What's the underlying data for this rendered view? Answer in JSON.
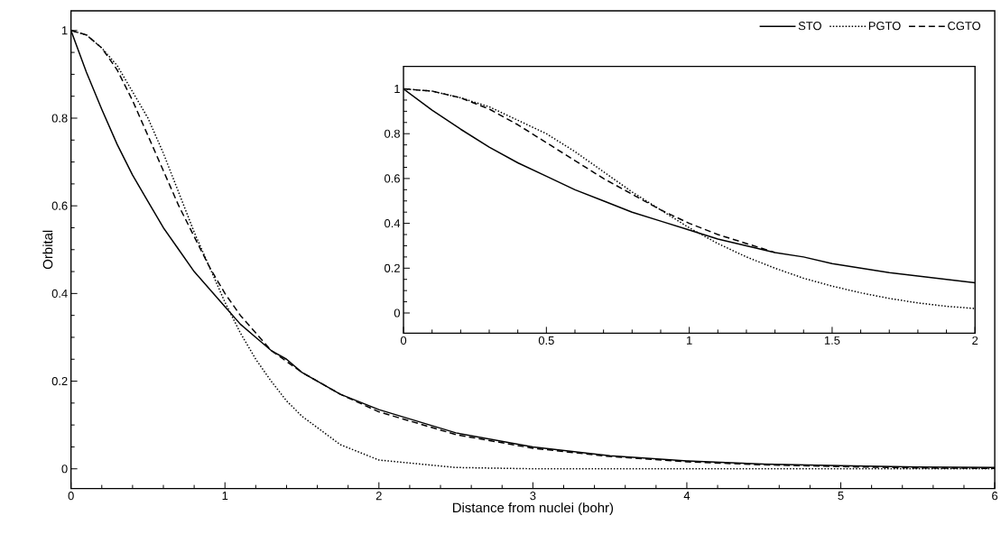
{
  "chart_data": [
    {
      "type": "line",
      "xlabel": "Distance from nuclei (bohr)",
      "ylabel": "Orbital",
      "xlim": [
        0,
        6
      ],
      "ylim": [
        -0.045,
        1.045
      ],
      "xticks": [
        0,
        1,
        2,
        3,
        4,
        5,
        6
      ],
      "yticks": [
        0,
        0.2,
        0.4,
        0.6,
        0.8,
        1
      ],
      "legend": "top right",
      "series": [
        {
          "name": "STO",
          "color": "#000000",
          "line_style": "solid",
          "x": [
            0,
            0.1,
            0.2,
            0.3,
            0.4,
            0.5,
            0.6,
            0.7,
            0.8,
            0.9,
            1,
            1.1,
            1.2,
            1.3,
            1.4,
            1.5,
            1.75,
            2,
            2.5,
            3,
            3.5,
            4,
            4.5,
            5,
            5.5,
            6
          ],
          "values": [
            1,
            0.905,
            0.82,
            0.74,
            0.67,
            0.61,
            0.55,
            0.5,
            0.45,
            0.41,
            0.37,
            0.33,
            0.3,
            0.27,
            0.25,
            0.22,
            0.17,
            0.135,
            0.082,
            0.05,
            0.03,
            0.018,
            0.011,
            0.007,
            0.004,
            0.003
          ]
        },
        {
          "name": "PGTO",
          "color": "#000000",
          "line_style": "dotted",
          "x": [
            0,
            0.1,
            0.2,
            0.3,
            0.4,
            0.5,
            0.6,
            0.7,
            0.8,
            0.9,
            1,
            1.1,
            1.2,
            1.3,
            1.4,
            1.5,
            1.75,
            2,
            2.5,
            3,
            3.5,
            4,
            4.5,
            5,
            5.5,
            6
          ],
          "values": [
            1,
            0.99,
            0.96,
            0.92,
            0.86,
            0.8,
            0.72,
            0.63,
            0.54,
            0.46,
            0.38,
            0.31,
            0.25,
            0.2,
            0.155,
            0.12,
            0.055,
            0.02,
            0.003,
            0,
            0,
            0,
            0,
            0,
            0,
            0
          ]
        },
        {
          "name": "CGTO",
          "color": "#000000",
          "line_style": "dashed",
          "x": [
            0,
            0.1,
            0.2,
            0.3,
            0.4,
            0.5,
            0.6,
            0.7,
            0.8,
            0.9,
            1,
            1.1,
            1.2,
            1.3,
            1.4,
            1.5,
            1.75,
            2,
            2.5,
            3,
            3.5,
            4,
            4.5,
            5,
            5.5,
            6
          ],
          "values": [
            1,
            0.99,
            0.96,
            0.91,
            0.84,
            0.76,
            0.68,
            0.6,
            0.53,
            0.46,
            0.4,
            0.35,
            0.31,
            0.27,
            0.245,
            0.22,
            0.17,
            0.13,
            0.078,
            0.047,
            0.028,
            0.016,
            0.009,
            0.005,
            0.002,
            0.001
          ]
        }
      ]
    },
    {
      "type": "line",
      "xlim": [
        0,
        2
      ],
      "ylim": [
        -0.09,
        1.1
      ],
      "xticks": [
        0,
        0.5,
        1,
        1.5,
        2
      ],
      "yticks": [
        0,
        0.2,
        0.4,
        0.6,
        0.8,
        1
      ],
      "series": [
        {
          "color": "#000000",
          "line_style": "solid",
          "x": [
            0,
            0.1,
            0.2,
            0.3,
            0.4,
            0.5,
            0.6,
            0.7,
            0.8,
            0.9,
            1,
            1.1,
            1.2,
            1.3,
            1.4,
            1.5,
            1.6,
            1.7,
            1.8,
            1.9,
            2
          ],
          "values": [
            1,
            0.905,
            0.82,
            0.74,
            0.67,
            0.61,
            0.55,
            0.5,
            0.45,
            0.41,
            0.37,
            0.33,
            0.3,
            0.27,
            0.25,
            0.22,
            0.2,
            0.18,
            0.165,
            0.15,
            0.135
          ]
        },
        {
          "color": "#000000",
          "line_style": "dotted",
          "x": [
            0,
            0.1,
            0.2,
            0.3,
            0.4,
            0.5,
            0.6,
            0.7,
            0.8,
            0.9,
            1,
            1.1,
            1.2,
            1.3,
            1.4,
            1.5,
            1.6,
            1.7,
            1.8,
            1.9,
            2
          ],
          "values": [
            1,
            0.99,
            0.96,
            0.92,
            0.86,
            0.8,
            0.72,
            0.63,
            0.54,
            0.46,
            0.38,
            0.31,
            0.25,
            0.2,
            0.155,
            0.12,
            0.09,
            0.065,
            0.045,
            0.03,
            0.02
          ]
        },
        {
          "color": "#000000",
          "line_style": "dashed",
          "x": [
            0,
            0.1,
            0.2,
            0.3,
            0.4,
            0.5,
            0.6,
            0.7,
            0.8,
            0.9,
            1,
            1.1,
            1.2,
            1.3
          ],
          "values": [
            1,
            0.99,
            0.96,
            0.91,
            0.84,
            0.76,
            0.68,
            0.6,
            0.53,
            0.46,
            0.4,
            0.35,
            0.31,
            0.27
          ]
        }
      ]
    }
  ]
}
